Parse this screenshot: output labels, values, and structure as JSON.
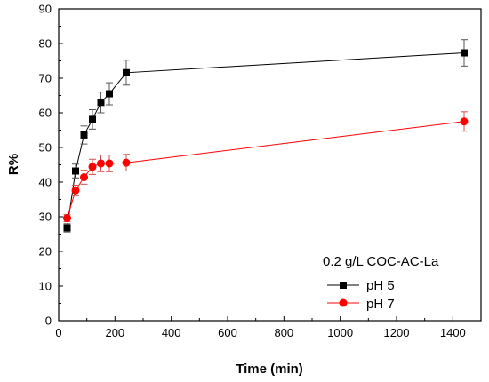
{
  "chart_data": {
    "type": "line",
    "title": "",
    "xlabel": "Time (min)",
    "ylabel": "R%",
    "xlim": [
      0,
      1500
    ],
    "ylim": [
      0,
      90
    ],
    "xticks": [
      0,
      200,
      400,
      600,
      800,
      1000,
      1200,
      1400
    ],
    "yticks": [
      0,
      10,
      20,
      30,
      40,
      50,
      60,
      70,
      80,
      90
    ],
    "grid": false,
    "legend": {
      "title": "0.2 g/L COC-AC-La",
      "placement": "bottom-right"
    },
    "series": [
      {
        "name": "pH 5",
        "color": "#000000",
        "marker": "square",
        "x": [
          30,
          60,
          90,
          120,
          150,
          180,
          240,
          1440
        ],
        "y": [
          26.8,
          43.2,
          53.6,
          58.1,
          63.0,
          65.5,
          71.6,
          77.3
        ],
        "err": [
          1.2,
          2.0,
          2.6,
          2.8,
          3.0,
          3.2,
          3.6,
          3.8
        ]
      },
      {
        "name": "pH 7",
        "color": "#ff0000",
        "marker": "circle",
        "x": [
          30,
          60,
          90,
          120,
          150,
          180,
          240,
          1440
        ],
        "y": [
          29.6,
          37.6,
          41.4,
          44.4,
          45.4,
          45.4,
          45.6,
          57.5
        ],
        "err": [
          1.0,
          1.5,
          2.0,
          2.2,
          2.4,
          2.4,
          2.4,
          2.8
        ]
      }
    ]
  }
}
